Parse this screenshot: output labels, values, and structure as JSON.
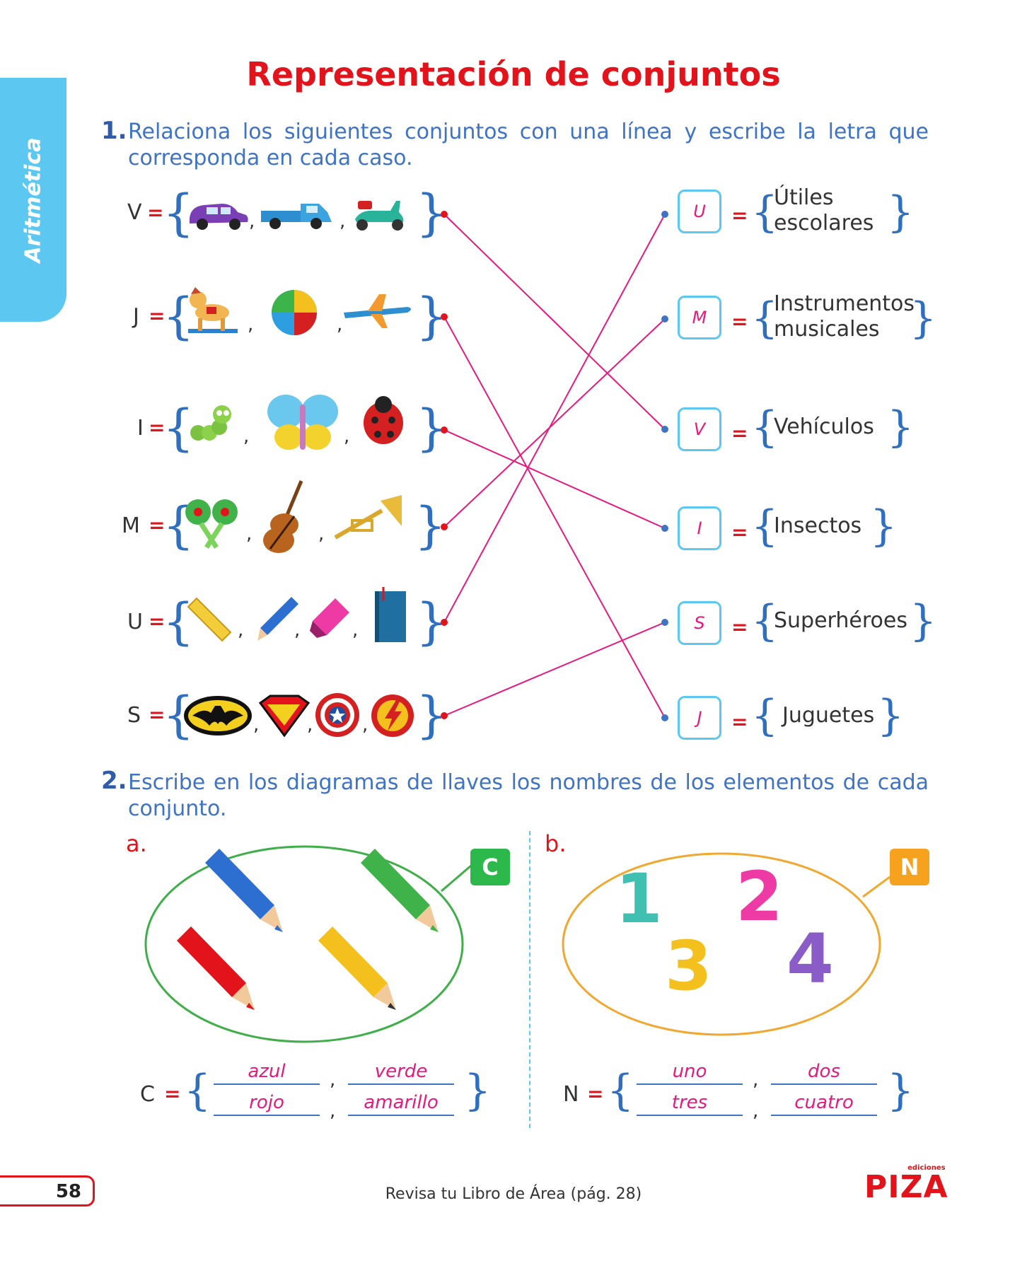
{
  "sidebar": {
    "label": "Aritmética"
  },
  "title": "Representación de conjuntos",
  "exercise1": {
    "number": "1.",
    "instruction_line1": "Relaciona los siguientes conjuntos con una línea y escribe la letra que",
    "instruction_line2": "corresponda en cada caso.",
    "left_sets": [
      {
        "letter": "V",
        "eq": "=",
        "elements": [
          "car-icon",
          "pickup-truck-icon",
          "scooter-icon"
        ]
      },
      {
        "letter": "J",
        "eq": "=",
        "elements": [
          "rocking-horse-icon",
          "beach-ball-icon",
          "toy-airplane-icon"
        ]
      },
      {
        "letter": "I",
        "eq": "=",
        "elements": [
          "caterpillar-icon",
          "butterfly-icon",
          "ladybug-icon"
        ]
      },
      {
        "letter": "M",
        "eq": "=",
        "elements": [
          "maracas-icon",
          "violin-icon",
          "trumpet-icon"
        ]
      },
      {
        "letter": "U",
        "eq": "=",
        "elements": [
          "ruler-icon",
          "pencil-icon",
          "highlighter-icon",
          "book-icon"
        ]
      },
      {
        "letter": "S",
        "eq": "=",
        "elements": [
          "batman-logo-icon",
          "superman-logo-icon",
          "captain-america-shield-icon",
          "flash-logo-icon"
        ]
      }
    ],
    "right_sets": [
      {
        "answer": "U",
        "eq": "=",
        "line1": "Útiles",
        "line2": "escolares"
      },
      {
        "answer": "M",
        "eq": "=",
        "line1": "Instrumentos",
        "line2": "musicales"
      },
      {
        "answer": "V",
        "eq": "=",
        "line1": "Vehículos",
        "line2": ""
      },
      {
        "answer": "I",
        "eq": "=",
        "line1": "Insectos",
        "line2": ""
      },
      {
        "answer": "S",
        "eq": "=",
        "line1": "Superhéroes",
        "line2": ""
      },
      {
        "answer": "J",
        "eq": "=",
        "line1": "Juguetes",
        "line2": ""
      }
    ],
    "connections": [
      [
        "V",
        "V"
      ],
      [
        "J",
        "J"
      ],
      [
        "I",
        "I"
      ],
      [
        "M",
        "M"
      ],
      [
        "U",
        "U"
      ],
      [
        "S",
        "S"
      ]
    ],
    "line_color": "#e6197e"
  },
  "exercise2": {
    "number": "2.",
    "instruction_line1": "Escribe en los diagramas de llaves los nombres de los elementos de cada",
    "instruction_line2": "conjunto.",
    "part_a": {
      "label": "a.",
      "tag": "C",
      "tag_color": "#2db84b",
      "ring_color": "#3fae49",
      "elements": [
        "blue-pencil-icon",
        "green-pencil-icon",
        "red-pencil-icon",
        "yellow-pencil-icon"
      ],
      "set_letter": "C",
      "eq": "=",
      "answers": [
        "azul",
        "verde",
        "rojo",
        "amarillo"
      ]
    },
    "part_b": {
      "label": "b.",
      "tag": "N",
      "tag_color": "#f6a21e",
      "ring_color": "#f0a830",
      "numbers": [
        "1",
        "2",
        "3",
        "4"
      ],
      "set_letter": "N",
      "eq": "=",
      "answers": [
        "uno",
        "dos",
        "tres",
        "cuatro"
      ]
    }
  },
  "footer": {
    "page_number": "58",
    "reference": "Revisa tu Libro de Área (pág. 28)",
    "logo_small": "ediciones",
    "logo_main": "PIZA"
  }
}
